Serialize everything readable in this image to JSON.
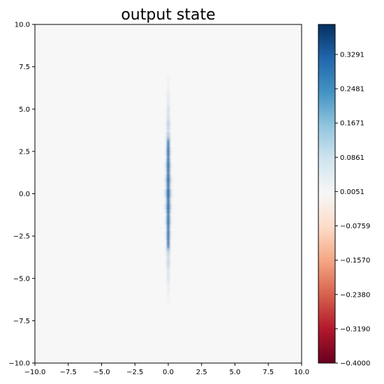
{
  "chart_data": {
    "type": "heatmap",
    "title": "output state",
    "xlabel": "",
    "ylabel": "",
    "xlim": [
      -10.0,
      10.0
    ],
    "ylim": [
      -10.0,
      10.0
    ],
    "x_ticks": [
      "−10.0",
      "−7.5",
      "−5.0",
      "−2.5",
      "0.0",
      "2.5",
      "5.0",
      "7.5",
      "10.0"
    ],
    "x_tick_values": [
      -10.0,
      -7.5,
      -5.0,
      -2.5,
      0.0,
      2.5,
      5.0,
      7.5,
      10.0
    ],
    "y_ticks": [
      "−10.0",
      "−7.5",
      "−5.0",
      "−2.5",
      "0.0",
      "2.5",
      "5.0",
      "7.5",
      "10.0"
    ],
    "y_tick_values": [
      -10.0,
      -7.5,
      -5.0,
      -2.5,
      0.0,
      2.5,
      5.0,
      7.5,
      10.0
    ],
    "colormap": "RdBu",
    "grid": false,
    "colorbar": {
      "min": -0.4,
      "max": 0.4,
      "tick_labels": [
        "−0.4000",
        "−0.3190",
        "−0.2380",
        "−0.1570",
        "−0.0759",
        "0.0051",
        "0.0861",
        "0.1671",
        "0.2481",
        "0.3291"
      ],
      "tick_values": [
        -0.4,
        -0.319,
        -0.238,
        -0.157,
        -0.0759,
        0.0051,
        0.0861,
        0.1671,
        0.2481,
        0.3291
      ]
    },
    "feature": {
      "description_values": "narrow vertical band of positive values centered at x = 0",
      "center_x": 0.0,
      "y_extent": [
        -6.5,
        7.0
      ],
      "peak_value": 0.3,
      "peak_y": 0.0
    }
  }
}
